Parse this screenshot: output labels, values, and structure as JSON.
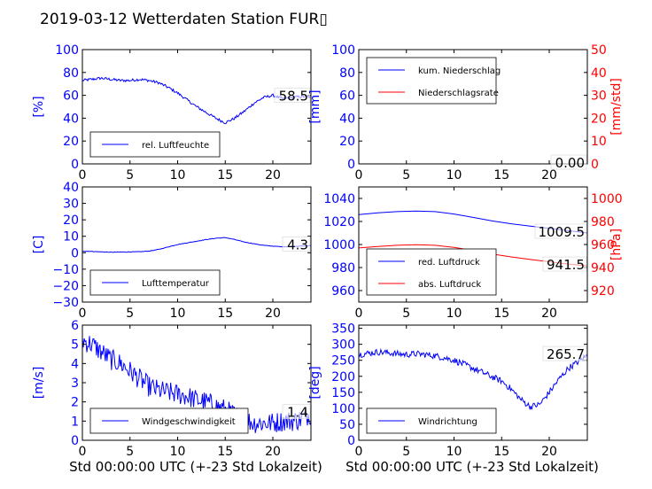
{
  "title": "2019-03-12 Wetterdaten Station FUR▯",
  "colors": {
    "blue": "#0000ff",
    "red": "#ff0000",
    "axis": "#000000"
  },
  "x_label": "Std 00:00:00 UTC (+-23 Std Lokalzeit)",
  "chart_data": [
    {
      "id": "humidity",
      "type": "line",
      "xlim": [
        0,
        24
      ],
      "xticks": [
        0,
        5,
        10,
        15,
        20
      ],
      "ylim": [
        0,
        100
      ],
      "yticks": [
        0,
        20,
        40,
        60,
        80,
        100
      ],
      "ylabel": "[%]",
      "ylabel_color": "#0000ff",
      "end_value_label": "58.5",
      "legend": {
        "position": "lower-left",
        "entries": [
          "rel. Luftfeuchte"
        ]
      },
      "series": [
        {
          "name": "rel. Luftfeuchte",
          "color": "#0000ff",
          "noise": 1.2,
          "x": [
            0,
            1,
            2,
            3,
            4,
            5,
            6,
            7,
            8,
            9,
            10,
            11,
            12,
            13,
            14,
            15,
            16,
            17,
            18,
            19,
            20,
            21,
            22,
            23,
            24
          ],
          "y": [
            73,
            74,
            75,
            74,
            73,
            73,
            74,
            73,
            71,
            67,
            62,
            56,
            50,
            45,
            40,
            36,
            40,
            46,
            53,
            58,
            60,
            57,
            58,
            59,
            58.5
          ]
        }
      ]
    },
    {
      "id": "precipitation",
      "type": "line",
      "xlim": [
        0,
        24
      ],
      "xticks": [
        0,
        5,
        10,
        15,
        20
      ],
      "ylim": [
        0,
        100
      ],
      "yticks": [
        0,
        20,
        40,
        60,
        80,
        100
      ],
      "ylabel": "[mm]",
      "ylabel_color": "#0000ff",
      "y2lim": [
        0,
        50
      ],
      "y2ticks": [
        0,
        10,
        20,
        30,
        40,
        50
      ],
      "y2label": "[mm/std]",
      "y2label_color": "#ff0000",
      "end_value_label": "0.00",
      "legend": {
        "position": "upper-left",
        "entries": [
          "kum. Niederschlag",
          "Niederschlagsrate"
        ]
      },
      "series": [
        {
          "name": "kum. Niederschlag",
          "color": "#0000ff",
          "axis": "left",
          "noise": 0,
          "x": [
            0,
            24
          ],
          "y": [
            0,
            0
          ]
        },
        {
          "name": "Niederschlagsrate",
          "color": "#ff0000",
          "axis": "right",
          "noise": 0,
          "x": [
            0,
            24
          ],
          "y": [
            0,
            0
          ]
        }
      ]
    },
    {
      "id": "temperature",
      "type": "line",
      "xlim": [
        0,
        24
      ],
      "xticks": [
        0,
        5,
        10,
        15,
        20
      ],
      "ylim": [
        -30,
        40
      ],
      "yticks": [
        -30,
        -20,
        -10,
        0,
        10,
        20,
        30,
        40
      ],
      "ylabel": "[C]",
      "ylabel_color": "#0000ff",
      "end_value_label": "4.3",
      "legend": {
        "position": "lower-left",
        "entries": [
          "Lufttemperatur"
        ]
      },
      "series": [
        {
          "name": "Lufttemperatur",
          "color": "#0000ff",
          "noise": 0.15,
          "x": [
            0,
            1,
            2,
            3,
            4,
            5,
            6,
            7,
            8,
            9,
            10,
            11,
            12,
            13,
            14,
            15,
            16,
            17,
            18,
            19,
            20,
            21,
            22,
            23,
            24
          ],
          "y": [
            1,
            0.8,
            0.5,
            0.3,
            0.4,
            0.5,
            0.6,
            1,
            2,
            3.5,
            5,
            6,
            7,
            8,
            8.8,
            9.2,
            8,
            6.5,
            5.5,
            4.5,
            4,
            3.6,
            3.8,
            4.1,
            4.3
          ]
        }
      ]
    },
    {
      "id": "pressure",
      "type": "line",
      "xlim": [
        0,
        24
      ],
      "xticks": [
        0,
        5,
        10,
        15,
        20
      ],
      "ylim": [
        950,
        1050
      ],
      "yticks": [
        960,
        980,
        1000,
        1020,
        1040
      ],
      "ylabel": "",
      "y2lim": [
        910,
        1010
      ],
      "y2ticks": [
        920,
        940,
        960,
        980,
        1000
      ],
      "y2label": "[hPa]",
      "y2label_color": "#ff0000",
      "end_value_labels": [
        "1009.5",
        "941.5"
      ],
      "legend": {
        "position": "lower-left",
        "entries": [
          "red. Luftdruck",
          "abs. Luftdruck"
        ]
      },
      "series": [
        {
          "name": "red. Luftdruck",
          "color": "#0000ff",
          "axis": "left",
          "noise": 0,
          "x": [
            0,
            2,
            4,
            6,
            8,
            10,
            12,
            14,
            16,
            18,
            20,
            22,
            24
          ],
          "y": [
            1026,
            1027.5,
            1028.5,
            1029,
            1028.5,
            1026.5,
            1023.5,
            1020.5,
            1018,
            1016,
            1014,
            1012,
            1010
          ]
        },
        {
          "name": "abs. Luftdruck",
          "color": "#ff0000",
          "axis": "right",
          "noise": 0,
          "x": [
            0,
            2,
            4,
            6,
            8,
            10,
            12,
            14,
            16,
            18,
            20,
            22,
            24
          ],
          "y": [
            957,
            958.3,
            959.3,
            959.8,
            959.3,
            957.5,
            954.8,
            951.8,
            949.2,
            947,
            945,
            943,
            941.5
          ]
        }
      ]
    },
    {
      "id": "windspeed",
      "type": "line",
      "xlim": [
        0,
        24
      ],
      "xticks": [
        0,
        5,
        10,
        15,
        20
      ],
      "ylim": [
        0,
        6
      ],
      "yticks": [
        0,
        1,
        2,
        3,
        4,
        5,
        6
      ],
      "ylabel": "[m/s]",
      "ylabel_color": "#0000ff",
      "end_value_label": "1.4",
      "legend": {
        "position": "lower-left",
        "entries": [
          "Windgeschwindigkeit"
        ]
      },
      "series": [
        {
          "name": "Windgeschwindigkeit",
          "color": "#0000ff",
          "noise": 0.55,
          "x": [
            0,
            1,
            2,
            3,
            4,
            5,
            6,
            7,
            8,
            9,
            10,
            11,
            12,
            13,
            14,
            15,
            16,
            17,
            18,
            19,
            20,
            21,
            22,
            23,
            24
          ],
          "y": [
            5.2,
            5,
            4.6,
            4.2,
            4,
            3.6,
            3.2,
            2.8,
            2.6,
            2.5,
            2.4,
            2.3,
            2.1,
            2,
            1.8,
            1.6,
            1.3,
            1.1,
            0.9,
            0.9,
            0.9,
            1,
            1,
            1.1,
            1.4
          ]
        }
      ]
    },
    {
      "id": "winddirection",
      "type": "line",
      "xlim": [
        0,
        24
      ],
      "xticks": [
        0,
        5,
        10,
        15,
        20
      ],
      "ylim": [
        0,
        360
      ],
      "yticks": [
        0,
        50,
        100,
        150,
        200,
        250,
        300,
        350
      ],
      "ylabel": "[deg]",
      "ylabel_color": "#0000ff",
      "end_value_label": "265.7",
      "legend": {
        "position": "lower-left",
        "entries": [
          "Windrichtung"
        ]
      },
      "series": [
        {
          "name": "Windrichtung",
          "color": "#0000ff",
          "noise": 10,
          "x": [
            0,
            1,
            2,
            3,
            4,
            5,
            6,
            7,
            8,
            9,
            10,
            11,
            12,
            13,
            14,
            15,
            16,
            17,
            18,
            19,
            20,
            21,
            22,
            23,
            24
          ],
          "y": [
            268,
            272,
            276,
            274,
            270,
            268,
            270,
            268,
            264,
            258,
            250,
            238,
            225,
            212,
            198,
            185,
            160,
            128,
            105,
            112,
            150,
            190,
            225,
            245,
            265.7
          ]
        }
      ]
    }
  ]
}
